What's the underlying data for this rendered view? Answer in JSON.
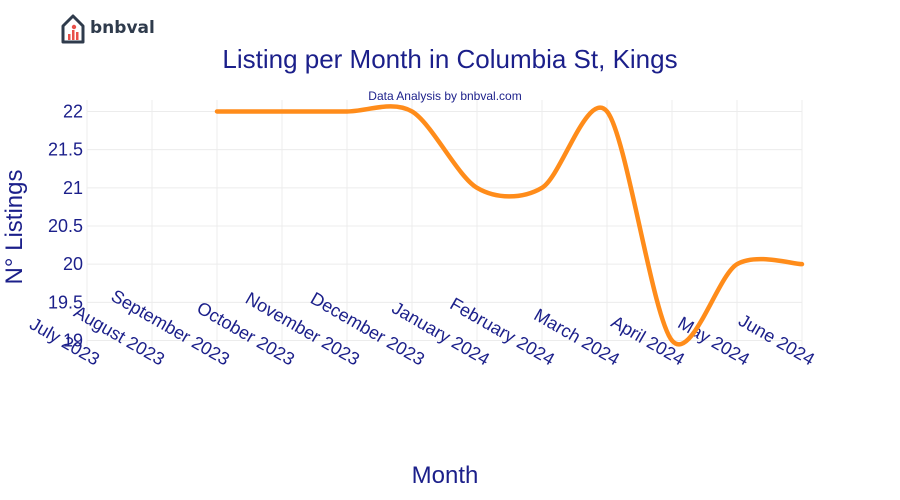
{
  "brand": {
    "name": "bnbval",
    "icon": "house-chart-icon",
    "colors": {
      "roof": "#2f3b4c",
      "bars": "#e8504a"
    }
  },
  "chart_data": {
    "type": "line",
    "title": "Listing per Month in Columbia St, Kings",
    "subtitle": "Data Analysis by bnbval.com",
    "xlabel": "Month",
    "ylabel": "N° Listings",
    "categories": [
      "July 2023",
      "August 2023",
      "September 2023",
      "October 2023",
      "November 2023",
      "December 2023",
      "January 2024",
      "February 2024",
      "March 2024",
      "April 2024",
      "May 2024",
      "June 2024"
    ],
    "series": [
      {
        "name": "Listings",
        "color": "#ff8c1a",
        "values": [
          null,
          null,
          22,
          22,
          22,
          22,
          21,
          21,
          22,
          19,
          20,
          20
        ]
      }
    ],
    "yticks": [
      "19",
      "19.5",
      "20",
      "20.5",
      "21",
      "21.5",
      "22"
    ],
    "ylim": [
      18.85,
      22.15
    ],
    "grid": true,
    "line_shape": "spline"
  }
}
